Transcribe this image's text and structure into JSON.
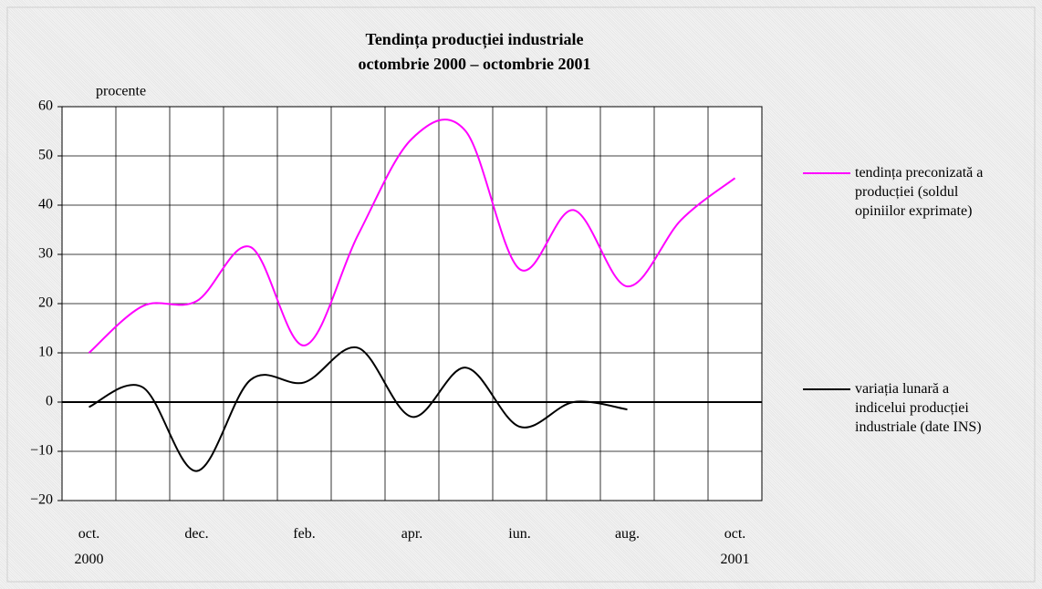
{
  "chart_data": {
    "type": "line",
    "title": "Tendința producției industriale",
    "subtitle": "octombrie 2000 – octombrie 2001",
    "y_label": "procente",
    "categories": [
      "oct. 2000",
      null,
      "dec.",
      null,
      "feb.",
      null,
      "apr.",
      null,
      "iun.",
      null,
      "aug.",
      null,
      "oct. 2001"
    ],
    "series": [
      {
        "name": "tendința preconizată a producției (soldul opiniilor exprimate)",
        "color": "#ff00ff",
        "values": [
          10,
          19.5,
          20.5,
          31.5,
          11.5,
          34,
          53.5,
          55,
          27,
          39,
          23.5,
          37,
          45.5
        ]
      },
      {
        "name": "variația lunară a indicelui producției industriale (date INS)",
        "color": "#000000",
        "values": [
          -1,
          3,
          -14,
          4.5,
          4,
          11,
          -3,
          7,
          -5,
          0,
          -1.5,
          null,
          null
        ]
      }
    ],
    "ylim": [
      -20,
      60
    ],
    "yticks": [
      {
        "value": -20,
        "label": "−20"
      },
      {
        "value": -10,
        "label": "−10"
      },
      0,
      10,
      20,
      30,
      40,
      50,
      60
    ],
    "grid": true,
    "legend": "right"
  }
}
